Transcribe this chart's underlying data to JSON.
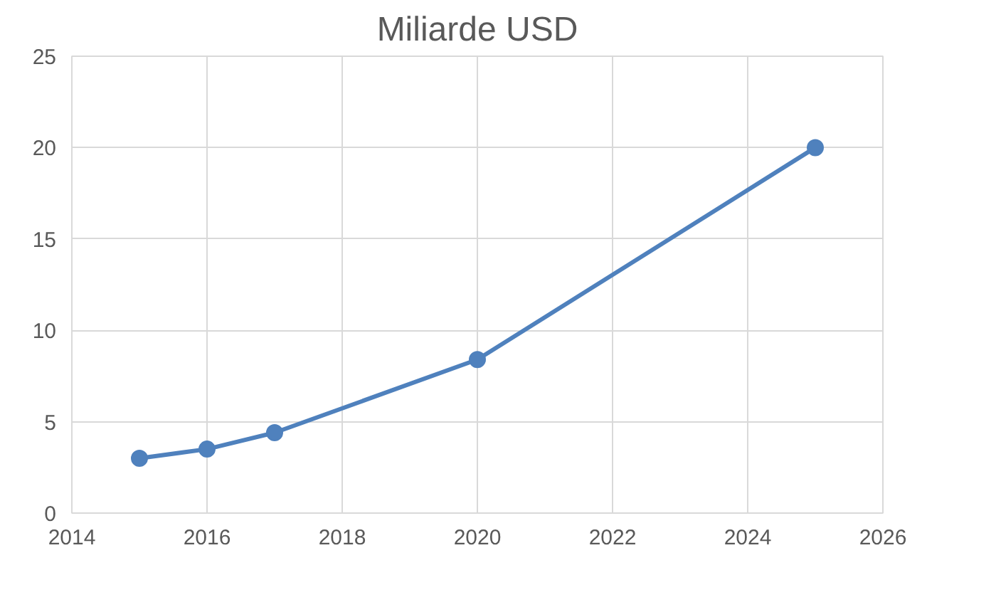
{
  "chart_data": {
    "type": "line",
    "title": "Miliarde USD",
    "x": [
      2015,
      2016,
      2017,
      2020,
      2025
    ],
    "series": [
      {
        "color": "#4f81bd",
        "values": [
          3.0,
          3.5,
          4.4,
          8.4,
          20.0
        ]
      }
    ],
    "xlim": [
      2014,
      2026
    ],
    "xticks": [
      2014,
      2016,
      2018,
      2020,
      2022,
      2024,
      2026
    ],
    "ylim": [
      0,
      25
    ],
    "yticks": [
      0,
      5,
      10,
      15,
      20,
      25
    ],
    "grid": true,
    "marker": "circle",
    "line_style": "solid"
  }
}
